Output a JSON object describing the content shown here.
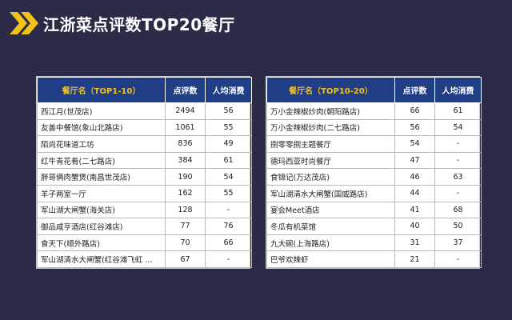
{
  "header": {
    "title": "江浙菜点评数TOP20餐厅"
  },
  "colors": {
    "background": "#2b2b48",
    "accent": "#f2c11a",
    "table_header": "#1f3e86"
  },
  "left_table": {
    "columns": [
      "餐厅名（TOP1-10）",
      "点评数",
      "人均消费"
    ],
    "rows": [
      [
        "西江月(世茂店)",
        "2494",
        "56"
      ],
      [
        "友善中餐馆(象山北路店)",
        "1061",
        "55"
      ],
      [
        "陌尚花味道工坊",
        "836",
        "49"
      ],
      [
        "红牛青花肴(二七路店)",
        "384",
        "61"
      ],
      [
        "胖哥俩肉蟹煲(南昌世茂店)",
        "190",
        "54"
      ],
      [
        "羊子两室一厅",
        "162",
        "55"
      ],
      [
        "军山湖大闸蟹(海关店)",
        "128",
        "-"
      ],
      [
        "御品咸亨酒店(红谷滩店)",
        "77",
        "76"
      ],
      [
        "食天下(顺外路店)",
        "70",
        "66"
      ],
      [
        "军山湖清水大闸蟹(红谷滩飞虹 …",
        "67",
        "-"
      ]
    ]
  },
  "right_table": {
    "columns": [
      "餐厅名（TOP10-20）",
      "点评数",
      "人均消费"
    ],
    "rows": [
      [
        "万小金辣椒炒肉(朝阳路店)",
        "66",
        "61"
      ],
      [
        "万小金辣椒炒肉(二七路店)",
        "56",
        "54"
      ],
      [
        "捌零零捌主题餐厅",
        "54",
        "-"
      ],
      [
        "德玛西亚时尚餐厅",
        "47",
        "-"
      ],
      [
        "食锦记(万达茂店)",
        "46",
        "63"
      ],
      [
        "军山湖清水大闸蟹(国威路店)",
        "44",
        "-"
      ],
      [
        "宴会Meet酒店",
        "41",
        "68"
      ],
      [
        "冬瓜有机菜馆",
        "40",
        "50"
      ],
      [
        "九大碗(上海路店)",
        "31",
        "37"
      ],
      [
        "巴爷欢辣虾",
        "21",
        "-"
      ]
    ]
  }
}
